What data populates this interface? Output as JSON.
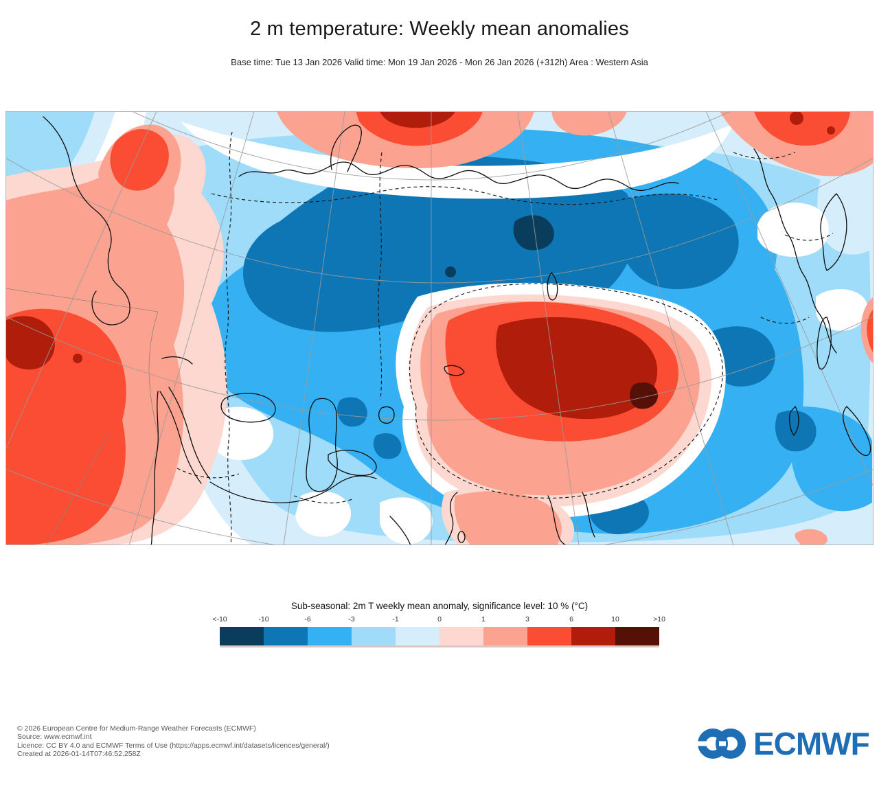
{
  "header": {
    "title": "2 m temperature: Weekly mean anomalies",
    "subtitle": "Base time: Tue 13 Jan 2026 Valid time: Mon 19 Jan 2026 - Mon 26 Jan 2026 (+312h) Area : Western Asia"
  },
  "map": {
    "area": "Western Asia",
    "variable": "2 m temperature weekly mean anomaly",
    "anomaly_scale_breakpoints_degC": [
      -10,
      -6,
      -3,
      -1,
      0,
      1,
      3,
      6,
      10
    ],
    "visible_features": [
      {
        "region": "central Siberia / western Russia",
        "anomaly": "strong cold, -6 to <-10 °C core"
      },
      {
        "region": "Mongolia / northern China",
        "anomaly": "strong warm, +6 to >+10 °C core"
      },
      {
        "region": "northeast Africa / eastern Europe band",
        "anomaly": "warm, +3 to +10 °C"
      },
      {
        "region": "Scandinavia and Arctic coast",
        "anomaly": "warm patches, +1 to +10 °C"
      },
      {
        "region": "Arabian Peninsula / Iran / South & East Asia",
        "anomaly": "cold, -1 to -6 °C"
      }
    ]
  },
  "legend": {
    "title": "Sub-seasonal: 2m T weekly mean anomaly, significance level: 10 % (°C)",
    "tick_labels": [
      "<-10",
      "-10",
      "-6",
      "-3",
      "-1",
      "0",
      "1",
      "3",
      "6",
      "10",
      ">10"
    ],
    "colors": [
      "#0a3d5c",
      "#0e76b4",
      "#35b1f3",
      "#9edcfa",
      "#d6eefb",
      "#fcd8d0",
      "#fba390",
      "#fb4d33",
      "#b01d0a",
      "#551008"
    ]
  },
  "footer": {
    "lines": [
      "© 2026 European Centre for Medium-Range Weather Forecasts (ECMWF)",
      "Source: www.ecmwf.int",
      "Licence: CC BY 4.0 and ECMWF Terms of Use (https://apps.ecmwf.int/datasets/licences/general/)",
      "Created at 2026-01-14T07:46:52.258Z"
    ],
    "logo_text": "ECMWF",
    "logo_color": "#1e6eb6"
  }
}
